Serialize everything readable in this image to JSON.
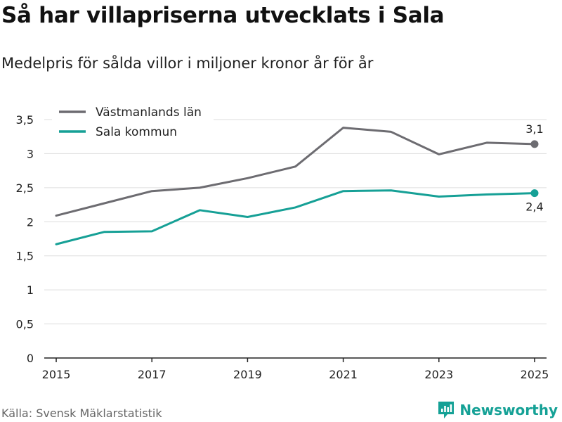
{
  "header": {
    "title": "Så har villapriserna utvecklats i Sala",
    "subtitle": "Medelpris för sålda villor i miljoner kronor år för år"
  },
  "footer": {
    "source": "Källa: Svensk Mäklarstatistik",
    "brand": "Newsworthy"
  },
  "colors": {
    "vastmanland": "#6d6c71",
    "sala": "#16a096",
    "grid": "#dddddd",
    "axis": "#222222"
  },
  "chart_data": {
    "type": "line",
    "title": "Så har villapriserna utvecklats i Sala",
    "subtitle": "Medelpris för sålda villor i miljoner kronor år för år",
    "xlabel": "",
    "ylabel": "",
    "x": [
      2015,
      2016,
      2017,
      2018,
      2019,
      2020,
      2021,
      2022,
      2023,
      2024,
      2025
    ],
    "xticks": [
      2015,
      2017,
      2019,
      2021,
      2023,
      2025
    ],
    "xtick_labels": [
      "2015",
      "2017",
      "2019",
      "2021",
      "2023",
      "2025"
    ],
    "yticks": [
      0,
      0.5,
      1,
      1.5,
      2,
      2.5,
      3,
      3.5
    ],
    "ytick_labels": [
      "0",
      "0,5",
      "1",
      "1,5",
      "2",
      "2,5",
      "3",
      "3,5"
    ],
    "ylim": [
      0,
      3.5
    ],
    "xlim": [
      2014.75,
      2025.25
    ],
    "grid": true,
    "legend_position": "top-left",
    "series": [
      {
        "name": "Västmanlands län",
        "color": "#6d6c71",
        "values": [
          2.09,
          2.27,
          2.45,
          2.5,
          2.64,
          2.81,
          3.38,
          3.32,
          2.99,
          3.16,
          3.14
        ],
        "end_label": "3,1"
      },
      {
        "name": "Sala kommun",
        "color": "#16a096",
        "values": [
          1.67,
          1.85,
          1.86,
          2.17,
          2.07,
          2.21,
          2.45,
          2.46,
          2.37,
          2.4,
          2.42
        ],
        "end_label": "2,4"
      }
    ]
  }
}
